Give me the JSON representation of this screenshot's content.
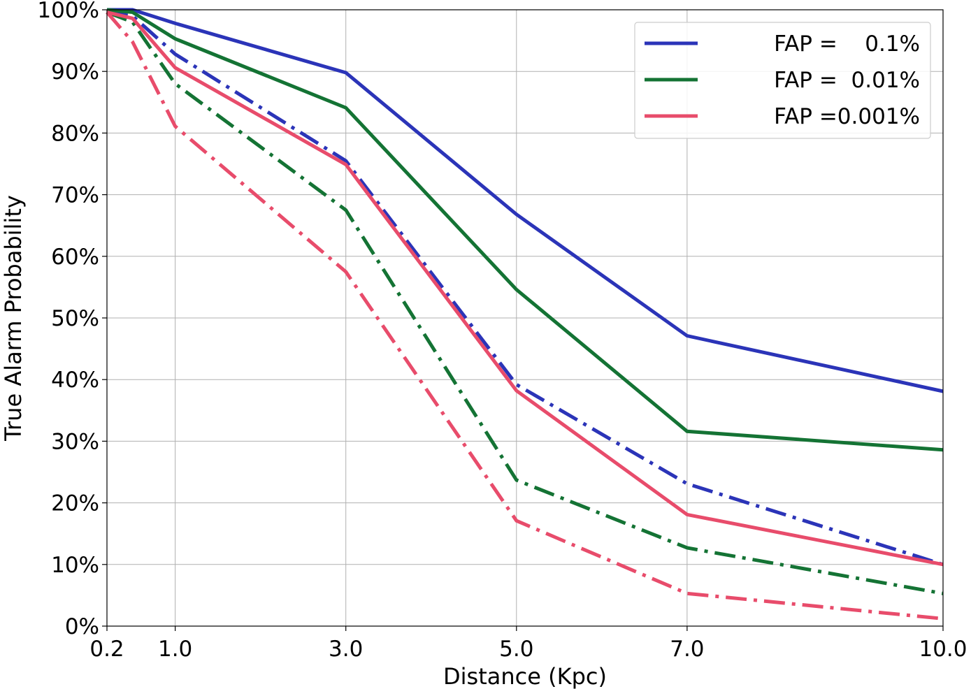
{
  "chart_data": {
    "type": "line",
    "title": "",
    "xlabel": "Distance (Kpc)",
    "ylabel": "True Alarm Probability",
    "xlim": [
      0.2,
      10.0
    ],
    "ylim": [
      0,
      100
    ],
    "x_ticks": [
      0.2,
      1.0,
      3.0,
      5.0,
      7.0,
      10.0
    ],
    "x_tick_labels": [
      "0.2",
      "1.0",
      "3.0",
      "5.0",
      "7.0",
      "10.0"
    ],
    "y_ticks": [
      0,
      10,
      20,
      30,
      40,
      50,
      60,
      70,
      80,
      90,
      100
    ],
    "y_tick_labels": [
      "0%",
      "10%",
      "20%",
      "30%",
      "40%",
      "50%",
      "60%",
      "70%",
      "80%",
      "90%",
      "100%"
    ],
    "grid": true,
    "legend_position": "top-right",
    "x": [
      0.2,
      0.5,
      1.0,
      3.0,
      5.0,
      7.0,
      10.0
    ],
    "series": [
      {
        "name": "FAP =    0.1%",
        "style": "solid",
        "color": "#2b34b8",
        "values": [
          100,
          100,
          97.8,
          89.8,
          66.8,
          47.1,
          38.1
        ]
      },
      {
        "style": "dashdot",
        "color": "#2b34b8",
        "values": [
          99.6,
          99.0,
          92.8,
          75.5,
          39.2,
          23.1,
          10.0
        ]
      },
      {
        "name": "FAP =  0.01%",
        "style": "solid",
        "color": "#147334",
        "values": [
          100,
          99.6,
          95.3,
          84.1,
          54.6,
          31.6,
          28.6
        ]
      },
      {
        "style": "dashdot",
        "color": "#147334",
        "values": [
          99.6,
          98.0,
          88.0,
          67.5,
          23.7,
          12.7,
          5.3
        ]
      },
      {
        "name": "FAP =0.001%",
        "style": "solid",
        "color": "#e84c6b",
        "values": [
          99.6,
          98.6,
          90.6,
          74.9,
          38.2,
          18.1,
          10.0
        ]
      },
      {
        "style": "dashdot",
        "color": "#e84c6b",
        "values": [
          99.6,
          94.8,
          81.1,
          57.5,
          17.1,
          5.3,
          1.2
        ]
      }
    ]
  }
}
